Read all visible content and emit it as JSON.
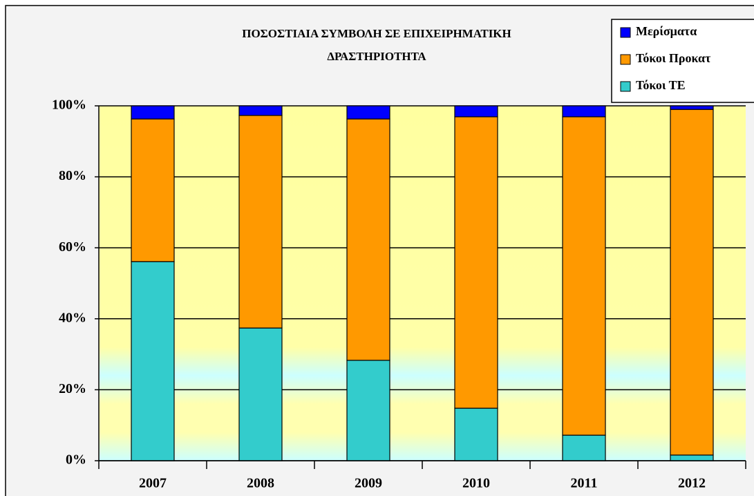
{
  "chart_data": {
    "type": "stacked_bar",
    "title": [
      "ΠΟΣΟΣΤΙΑΙΑ ΣΥΜΒΟΛΗ ΣΕ ΕΠΙΧΕΙΡΗΜΑΤΙΚΗ",
      "ΔΡΑΣΤΗΡΙΟΤΗΤΑ"
    ],
    "categories": [
      "2007",
      "2008",
      "2009",
      "2010",
      "2011",
      "2012"
    ],
    "series": [
      {
        "name": "Τόκοι ΤΕ",
        "color": "#33cccc",
        "values": [
          56.1,
          37.4,
          28.3,
          14.8,
          7.2,
          1.6
        ]
      },
      {
        "name": "Τόκοι Προκατ",
        "color": "#ff9900",
        "values": [
          40.2,
          59.9,
          68.0,
          82.1,
          89.7,
          97.4
        ]
      },
      {
        "name": "Μερίσματα",
        "color": "#0000ff",
        "values": [
          3.7,
          2.7,
          3.7,
          3.1,
          3.1,
          1.0
        ]
      }
    ],
    "ylim": [
      0,
      100
    ],
    "yticks": [
      {
        "value": 0,
        "label": "0%"
      },
      {
        "value": 20,
        "label": "20%"
      },
      {
        "value": 40,
        "label": "40%"
      },
      {
        "value": 60,
        "label": "60%"
      },
      {
        "value": 80,
        "label": "80%"
      },
      {
        "value": 100,
        "label": "100%"
      }
    ],
    "grid": true,
    "legend": "top-right"
  }
}
